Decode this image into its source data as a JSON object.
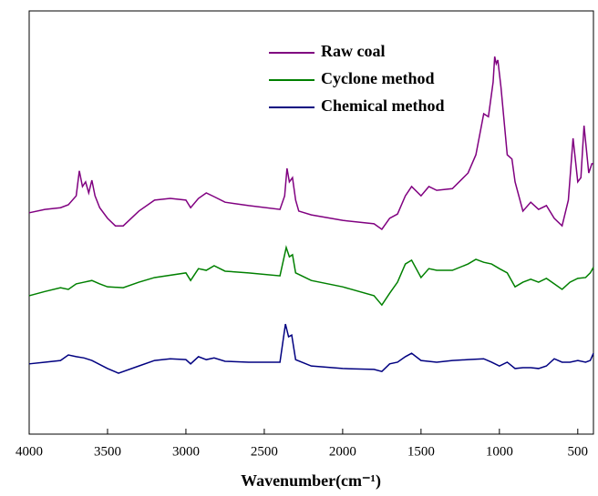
{
  "chart_data": {
    "type": "line",
    "xlabel": "Wavenumber(cm⁻¹)",
    "xlim": [
      4000,
      400
    ],
    "ylim": [
      0,
      100
    ],
    "xticks": [
      4000,
      3500,
      3000,
      2500,
      2000,
      1500,
      1000,
      500
    ],
    "grid": false,
    "legend": "upper center",
    "series": [
      {
        "name": "Raw coal",
        "color": "#800080",
        "x": [
          4000,
          3900,
          3800,
          3750,
          3700,
          3680,
          3660,
          3640,
          3620,
          3600,
          3580,
          3550,
          3500,
          3450,
          3400,
          3300,
          3200,
          3100,
          3000,
          2970,
          2920,
          2870,
          2820,
          2750,
          2600,
          2400,
          2370,
          2355,
          2340,
          2320,
          2300,
          2280,
          2200,
          2000,
          1800,
          1750,
          1700,
          1650,
          1600,
          1560,
          1500,
          1450,
          1400,
          1300,
          1200,
          1150,
          1100,
          1070,
          1040,
          1030,
          1020,
          1010,
          990,
          950,
          920,
          900,
          850,
          800,
          750,
          700,
          650,
          600,
          560,
          530,
          500,
          480,
          460,
          430,
          410,
          400
        ],
        "values": [
          52.3,
          53.1,
          53.5,
          54.2,
          56.3,
          62.2,
          58.5,
          59.6,
          57,
          60,
          56.3,
          53.5,
          51,
          49.2,
          49.2,
          52.7,
          55.3,
          55.7,
          55.3,
          53.5,
          55.7,
          57,
          56.1,
          54.8,
          54,
          53.1,
          56.3,
          62.8,
          59.6,
          60.6,
          55.3,
          52.7,
          51.8,
          50.5,
          49.7,
          48.4,
          51,
          52,
          56.3,
          58.5,
          56.3,
          58.5,
          57.6,
          58,
          61.7,
          66,
          75.7,
          75,
          83.2,
          89.2,
          87.5,
          88.4,
          82,
          66,
          65,
          59.6,
          52.7,
          54.8,
          53.1,
          54,
          51,
          49.2,
          55.3,
          69.9,
          59.6,
          60.6,
          72.9,
          61.7,
          63.9,
          63.9
        ]
      },
      {
        "name": "Cyclone method",
        "color": "#008000",
        "x": [
          4000,
          3900,
          3800,
          3750,
          3700,
          3650,
          3600,
          3550,
          3500,
          3400,
          3300,
          3200,
          3000,
          2970,
          2920,
          2870,
          2820,
          2750,
          2600,
          2400,
          2360,
          2340,
          2320,
          2300,
          2200,
          2000,
          1800,
          1750,
          1700,
          1650,
          1600,
          1560,
          1500,
          1450,
          1400,
          1300,
          1200,
          1150,
          1100,
          1050,
          1000,
          950,
          900,
          850,
          800,
          750,
          700,
          650,
          600,
          550,
          500,
          450,
          420,
          400
        ],
        "values": [
          32.7,
          33.7,
          34.6,
          34.2,
          35.5,
          35.9,
          36.3,
          35.5,
          34.8,
          34.6,
          35.9,
          37,
          38.1,
          36.3,
          39.1,
          38.7,
          39.8,
          38.5,
          38.1,
          37.4,
          44.1,
          41.9,
          42.4,
          38.1,
          36.3,
          34.8,
          32.7,
          30.5,
          33.3,
          35.9,
          40.2,
          41.1,
          37,
          39.1,
          38.7,
          38.7,
          40.2,
          41.3,
          40.6,
          40.2,
          39.1,
          38.1,
          34.8,
          35.9,
          36.6,
          35.9,
          36.8,
          35.5,
          34.2,
          35.9,
          36.8,
          37,
          38.1,
          39.4
        ]
      },
      {
        "name": "Chemical method",
        "color": "#000080",
        "x": [
          4000,
          3900,
          3800,
          3750,
          3700,
          3650,
          3600,
          3500,
          3430,
          3300,
          3200,
          3100,
          3000,
          2970,
          2920,
          2870,
          2820,
          2750,
          2600,
          2400,
          2365,
          2345,
          2325,
          2300,
          2200,
          2000,
          1800,
          1750,
          1700,
          1650,
          1600,
          1560,
          1500,
          1400,
          1300,
          1200,
          1100,
          1050,
          1000,
          950,
          900,
          850,
          800,
          750,
          700,
          650,
          600,
          550,
          500,
          450,
          420,
          400
        ],
        "values": [
          16.6,
          17,
          17.4,
          18.7,
          18.3,
          18,
          17.4,
          15.5,
          14.4,
          16.1,
          17.4,
          17.8,
          17.6,
          16.6,
          18.3,
          17.6,
          18,
          17.2,
          17,
          17,
          26,
          23,
          23.4,
          17.6,
          16.1,
          15.5,
          15.3,
          14.8,
          16.6,
          17,
          18.3,
          19.1,
          17.4,
          17,
          17.4,
          17.6,
          17.8,
          17,
          16.1,
          17,
          15.5,
          15.7,
          15.7,
          15.5,
          16.1,
          17.8,
          17,
          17,
          17.4,
          17,
          17.4,
          19.1
        ]
      }
    ]
  }
}
